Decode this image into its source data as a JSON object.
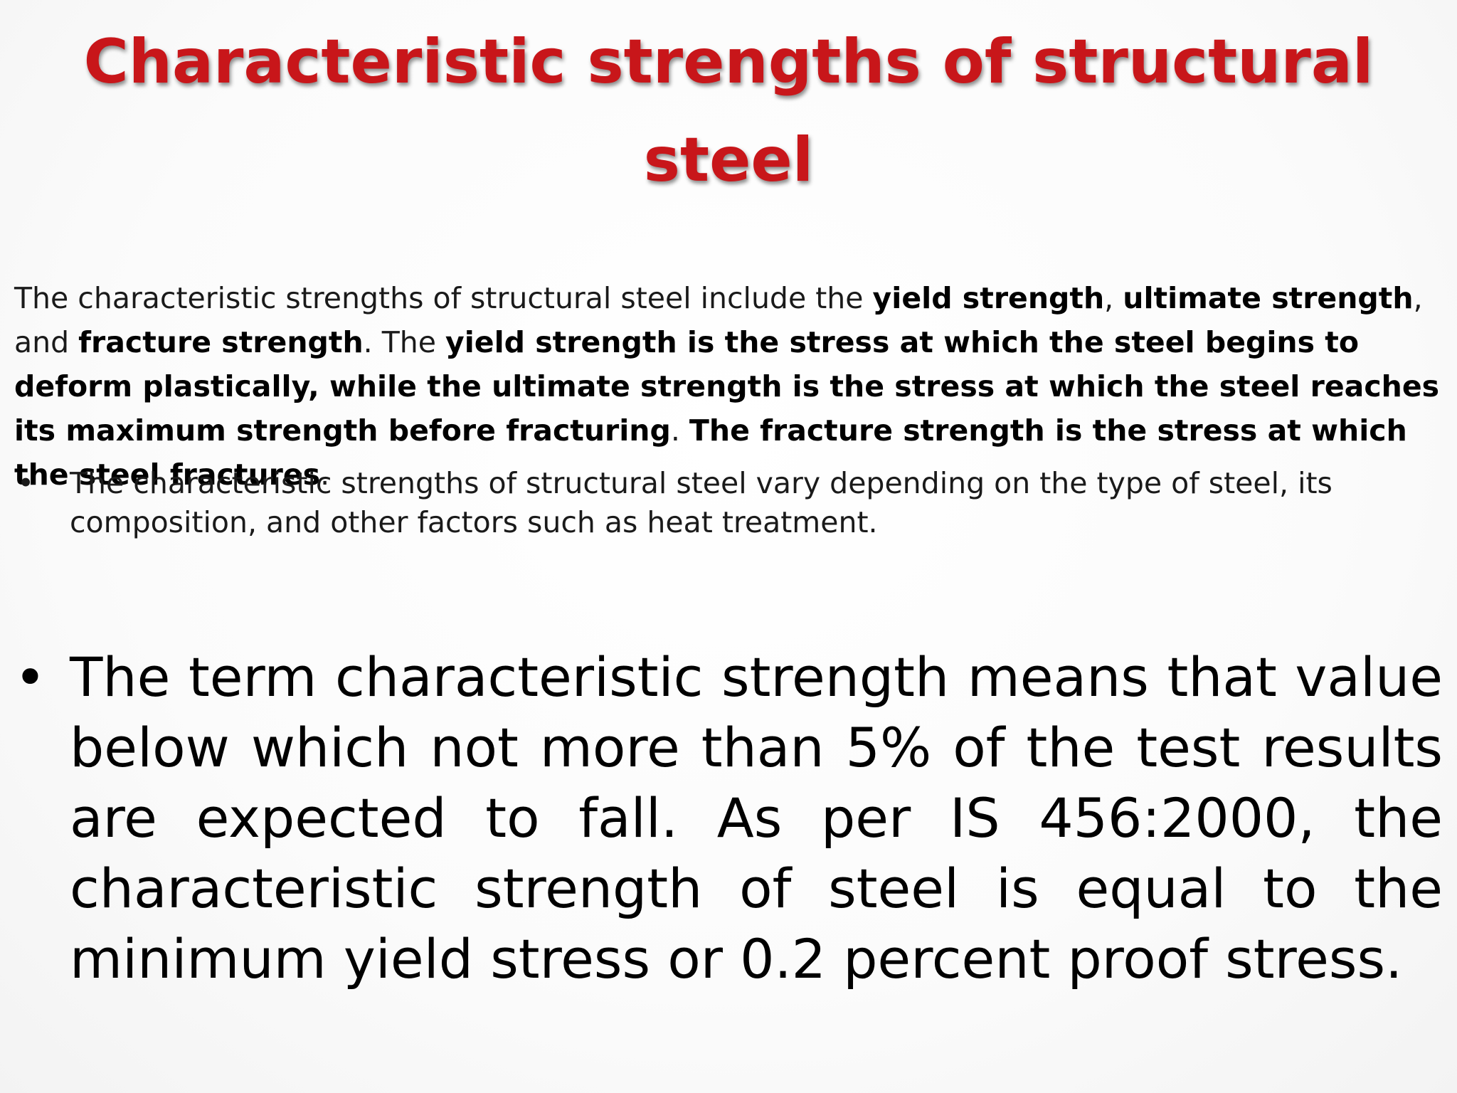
{
  "slide": {
    "title": "Characteristic strengths of structural steel",
    "paragraph": {
      "s1": "The characteristic strengths of structural steel include the ",
      "b1": "yield strength",
      "s2": ", ",
      "b2": "ultimate strength",
      "s3": ", and ",
      "b3": "fracture strength",
      "s4": ". The ",
      "b4": "yield strength is the stress at which the steel begins to deform plastically, while the ultimate strength is the stress at which the steel reaches its maximum strength before fracturing",
      "s5": ". ",
      "b5": "The fracture strength is the stress at which the steel fractures",
      "s6": "."
    },
    "bullet_small": {
      "marker": "•",
      "text": "The characteristic strengths of structural steel vary depending on the type of steel, its composition, and other factors such as heat treatment."
    },
    "bullet_large": {
      "marker": "•",
      "text": "The term characteristic strength means that value below which not more than 5% of the test results are expected to fall. As per IS 456:2000, the characteristic strength of steel is equal to the minimum yield stress or 0.2 percent proof stress."
    },
    "colors": {
      "title": "#c8161a",
      "body": "#1a1a1a"
    }
  }
}
